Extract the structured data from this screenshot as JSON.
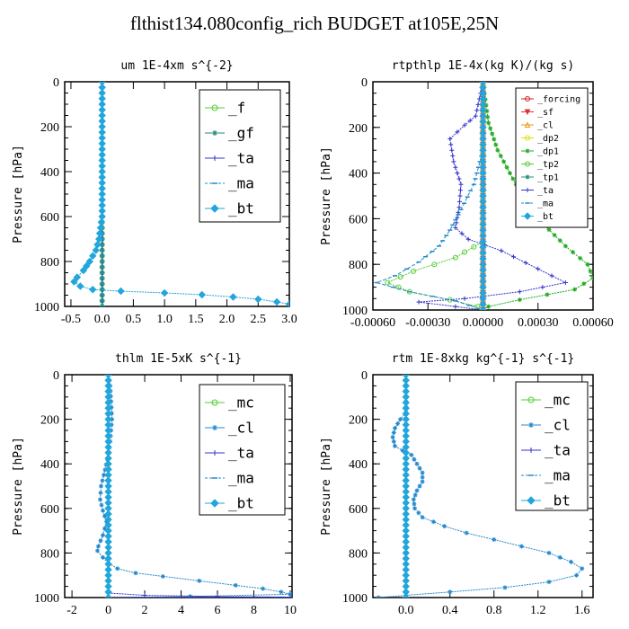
{
  "title": "flthist134.080config_rich  BUDGET at105E,25N",
  "chart_data": [
    {
      "type": "line",
      "title": "um  1E-4xm s^{-2}",
      "ylabel": "Pressure [hPa]",
      "xlim": [
        -0.6,
        3.0
      ],
      "ylim": [
        0,
        1000
      ],
      "x_ticks": [
        -0.5,
        0.0,
        0.5,
        1.0,
        1.5,
        2.0,
        2.5,
        3.0
      ],
      "x_tick_labels": [
        "-0.5",
        "0.0",
        "0.5",
        "1.0",
        "1.5",
        "2.0",
        "2.5",
        "3.0"
      ],
      "y_ticks": [
        0,
        200,
        400,
        600,
        800,
        1000
      ],
      "y_tick_labels": [
        "0",
        "200",
        "400",
        "600",
        "800",
        "1000"
      ],
      "legend_position": "top-right",
      "legend_font": 16,
      "series": [
        {
          "name": "_f",
          "color": "#55cc33",
          "marker": "o",
          "pairs": [
            [
              0,
              0
            ],
            [
              0,
              200
            ],
            [
              0,
              400
            ],
            [
              0,
              600
            ],
            [
              0,
              800
            ],
            [
              0,
              1000
            ]
          ]
        },
        {
          "name": "_gf",
          "color": "#228b77",
          "marker": "*",
          "pairs": [
            [
              0,
              0
            ],
            [
              0,
              200
            ],
            [
              0,
              400
            ],
            [
              0,
              600
            ],
            [
              0,
              800
            ],
            [
              0,
              1000
            ]
          ]
        },
        {
          "name": "_ta",
          "color": "#3333cc",
          "marker": "+",
          "pairs": [
            [
              0,
              0
            ],
            [
              0,
              1000
            ]
          ]
        },
        {
          "name": "_ma",
          "color": "#2288cc",
          "marker": "-",
          "pairs": [
            [
              0,
              0
            ],
            [
              0,
              1000
            ]
          ]
        },
        {
          "name": "_bt",
          "color": "#22a6dd",
          "marker": "d",
          "pairs": [
            [
              0,
              0
            ],
            [
              0,
              600
            ],
            [
              -0.05,
              700
            ],
            [
              -0.1,
              750
            ],
            [
              -0.2,
              800
            ],
            [
              -0.3,
              840
            ],
            [
              -0.4,
              870
            ],
            [
              -0.45,
              890
            ],
            [
              -0.35,
              910
            ],
            [
              -0.15,
              925
            ],
            [
              0.3,
              932
            ],
            [
              1.0,
              940
            ],
            [
              1.6,
              948
            ],
            [
              2.1,
              958
            ],
            [
              2.5,
              968
            ],
            [
              2.8,
              980
            ],
            [
              3.0,
              990
            ]
          ]
        }
      ]
    },
    {
      "type": "line",
      "title": "rtpthlp  1E-4x(kg K)/(kg s)",
      "ylabel": "Pressure [hPa]",
      "xlim": [
        -0.0006,
        0.0006
      ],
      "ylim": [
        0,
        1000
      ],
      "x_ticks": [
        -0.0006,
        -0.0003,
        0.0,
        0.0003,
        0.0006
      ],
      "x_tick_labels": [
        "-0.00060",
        "-0.00030",
        "0.00000",
        "0.00030",
        "0.00060"
      ],
      "y_ticks": [
        0,
        200,
        400,
        600,
        800,
        1000
      ],
      "y_tick_labels": [
        "0",
        "200",
        "400",
        "600",
        "800",
        "1000"
      ],
      "legend_position": "top-right",
      "legend_font": 10,
      "series": [
        {
          "name": "_forcing",
          "color": "#cc2222",
          "marker": "o",
          "pairs": [
            [
              0,
              0
            ],
            [
              0,
              1000
            ]
          ]
        },
        {
          "name": "_sf",
          "color": "#dd3333",
          "marker": "v",
          "pairs": [
            [
              0,
              0
            ],
            [
              0,
              1000
            ]
          ]
        },
        {
          "name": "_cl",
          "color": "#ee9911",
          "marker": "^",
          "pairs": [
            [
              0,
              0
            ],
            [
              0,
              1000
            ]
          ]
        },
        {
          "name": "_dp2",
          "color": "#dddd00",
          "marker": "o",
          "pairs": [
            [
              0,
              0
            ],
            [
              0,
              1000
            ]
          ]
        },
        {
          "name": "_dp1",
          "color": "#22aa22",
          "marker": "*",
          "pairs": [
            [
              0,
              0
            ],
            [
              3e-05,
              180
            ],
            [
              8e-05,
              300
            ],
            [
              0.00018,
              450
            ],
            [
              0.0003,
              600
            ],
            [
              0.00045,
              720
            ],
            [
              0.00057,
              800
            ],
            [
              0.0006,
              860
            ],
            [
              0.0005,
              910
            ],
            [
              0.0002,
              955
            ],
            [
              3e-05,
              985
            ],
            [
              0,
              1000
            ]
          ]
        },
        {
          "name": "_tp2",
          "color": "#55cc33",
          "marker": "o",
          "pairs": [
            [
              0,
              0
            ],
            [
              0,
              700
            ],
            [
              -0.00015,
              770
            ],
            [
              -0.00038,
              830
            ],
            [
              -0.00052,
              880
            ],
            [
              -0.0004,
              920
            ],
            [
              -0.00018,
              955
            ],
            [
              -3e-05,
              985
            ],
            [
              0,
              1000
            ]
          ]
        },
        {
          "name": "_tp1",
          "color": "#228b77",
          "marker": "*",
          "pairs": [
            [
              0,
              0
            ],
            [
              0,
              1000
            ]
          ]
        },
        {
          "name": "_ta",
          "color": "#3333cc",
          "marker": "+",
          "pairs": [
            [
              0,
              0
            ],
            [
              -4e-05,
              150
            ],
            [
              -0.0001,
              190
            ],
            [
              -0.00018,
              250
            ],
            [
              -0.00016,
              350
            ],
            [
              -0.00012,
              450
            ],
            [
              -0.00013,
              550
            ],
            [
              -0.00015,
              640
            ],
            [
              -8e-05,
              690
            ],
            [
              0.0001,
              740
            ],
            [
              0.0003,
              820
            ],
            [
              0.00045,
              880
            ],
            [
              0.0002,
              920
            ],
            [
              -0.0001,
              950
            ],
            [
              -0.00035,
              965
            ],
            [
              -0.00015,
              985
            ],
            [
              0,
              1000
            ]
          ]
        },
        {
          "name": "_ma",
          "color": "#2288cc",
          "marker": "-",
          "pairs": [
            [
              0,
              0
            ],
            [
              0,
              300
            ],
            [
              -5e-05,
              450
            ],
            [
              -0.00012,
              560
            ],
            [
              -0.00018,
              650
            ],
            [
              -0.00024,
              720
            ],
            [
              -0.00035,
              790
            ],
            [
              -0.00048,
              850
            ],
            [
              -0.00058,
              880
            ],
            [
              -0.0004,
              920
            ],
            [
              -0.00015,
              960
            ],
            [
              0,
              1000
            ]
          ]
        },
        {
          "name": "_bt",
          "color": "#22a6dd",
          "marker": "d",
          "pairs": [
            [
              0,
              0
            ],
            [
              0,
              1000
            ]
          ]
        }
      ]
    },
    {
      "type": "line",
      "title": "thlm  1E-5xK s^{-1}",
      "ylabel": "Pressure [hPa]",
      "xlim": [
        -2.4,
        10.1
      ],
      "ylim": [
        0,
        1000
      ],
      "x_ticks": [
        -2,
        0,
        2,
        4,
        6,
        8,
        10
      ],
      "x_tick_labels": [
        "-2",
        "0",
        "2",
        "4",
        "6",
        "8",
        "10"
      ],
      "y_ticks": [
        0,
        200,
        400,
        600,
        800,
        1000
      ],
      "y_tick_labels": [
        "0",
        "200",
        "400",
        "600",
        "800",
        "1000"
      ],
      "legend_position": "top-right",
      "legend_font": 16,
      "series": [
        {
          "name": "_mc",
          "color": "#55cc33",
          "marker": "o",
          "pairs": [
            [
              0,
              0
            ],
            [
              0,
              200
            ],
            [
              0,
              400
            ],
            [
              0,
              600
            ],
            [
              0,
              800
            ],
            [
              0,
              1000
            ]
          ]
        },
        {
          "name": "_cl",
          "color": "#2288cc",
          "marker": "*",
          "pairs": [
            [
              0,
              0
            ],
            [
              0.1,
              50
            ],
            [
              0.15,
              120
            ],
            [
              0.2,
              200
            ],
            [
              0.1,
              300
            ],
            [
              -0.05,
              380
            ],
            [
              -0.25,
              450
            ],
            [
              -0.4,
              500
            ],
            [
              -0.45,
              560
            ],
            [
              -0.3,
              610
            ],
            [
              -0.1,
              660
            ],
            [
              -0.3,
              720
            ],
            [
              -0.55,
              770
            ],
            [
              -0.6,
              790
            ],
            [
              -0.3,
              820
            ],
            [
              0,
              845
            ],
            [
              0.5,
              870
            ],
            [
              1.5,
              890
            ],
            [
              3.0,
              905
            ],
            [
              5.0,
              925
            ],
            [
              7.0,
              945
            ],
            [
              8.5,
              960
            ],
            [
              9.5,
              975
            ],
            [
              10,
              985
            ],
            [
              4.5,
              995
            ],
            [
              0,
              1000
            ]
          ]
        },
        {
          "name": "_ta",
          "color": "#3333cc",
          "marker": "+",
          "pairs": [
            [
              0,
              0
            ],
            [
              0,
              980
            ],
            [
              2,
              990
            ],
            [
              6,
              995
            ],
            [
              10,
              998
            ],
            [
              0,
              1000
            ]
          ]
        },
        {
          "name": "_ma",
          "color": "#2288cc",
          "marker": "-",
          "pairs": [
            [
              0,
              0
            ],
            [
              0,
              1000
            ]
          ]
        },
        {
          "name": "_bt",
          "color": "#22a6dd",
          "marker": "d",
          "pairs": [
            [
              0,
              0
            ],
            [
              0,
              1000
            ]
          ]
        }
      ]
    },
    {
      "type": "line",
      "title": "rtm  1E-8xkg kg^{-1} s^{-1}",
      "ylabel": "Pressure [hPa]",
      "xlim": [
        -0.3,
        1.7
      ],
      "ylim": [
        0,
        1000
      ],
      "x_ticks": [
        0.0,
        0.4,
        0.8,
        1.2,
        1.6
      ],
      "x_tick_labels": [
        "0.0",
        "0.4",
        "0.8",
        "1.2",
        "1.6"
      ],
      "y_ticks": [
        0,
        200,
        400,
        600,
        800,
        1000
      ],
      "y_tick_labels": [
        "0",
        "200",
        "400",
        "600",
        "800",
        "1000"
      ],
      "legend_position": "top-right",
      "legend_font": 16,
      "series": [
        {
          "name": "_mc",
          "color": "#55cc33",
          "marker": "o",
          "pairs": [
            [
              0,
              0
            ],
            [
              0,
              200
            ],
            [
              0,
              400
            ],
            [
              0,
              600
            ],
            [
              0,
              800
            ],
            [
              0,
              1000
            ]
          ]
        },
        {
          "name": "_cl",
          "color": "#2288cc",
          "marker": "*",
          "pairs": [
            [
              0,
              0
            ],
            [
              0,
              170
            ],
            [
              -0.05,
              200
            ],
            [
              -0.1,
              240
            ],
            [
              -0.12,
              280
            ],
            [
              -0.1,
              320
            ],
            [
              -0.03,
              340
            ],
            [
              0.05,
              360
            ],
            [
              0.1,
              400
            ],
            [
              0.15,
              440
            ],
            [
              0.15,
              480
            ],
            [
              0.1,
              520
            ],
            [
              0.07,
              560
            ],
            [
              0.08,
              600
            ],
            [
              0.15,
              640
            ],
            [
              0.35,
              680
            ],
            [
              0.55,
              710
            ],
            [
              0.8,
              740
            ],
            [
              1.05,
              770
            ],
            [
              1.3,
              800
            ],
            [
              1.5,
              840
            ],
            [
              1.6,
              870
            ],
            [
              1.55,
              900
            ],
            [
              1.3,
              930
            ],
            [
              0.9,
              955
            ],
            [
              0.4,
              975
            ],
            [
              0,
              990
            ],
            [
              -0.25,
              1000
            ]
          ]
        },
        {
          "name": "_ta",
          "color": "#3333cc",
          "marker": "+",
          "pairs": [
            [
              0,
              0
            ],
            [
              0,
              1000
            ]
          ]
        },
        {
          "name": "_ma",
          "color": "#2288cc",
          "marker": "-",
          "pairs": [
            [
              0,
              0
            ],
            [
              0,
              1000
            ]
          ]
        },
        {
          "name": "_bt",
          "color": "#22a6dd",
          "marker": "d",
          "pairs": [
            [
              0,
              0
            ],
            [
              0,
              1000
            ]
          ]
        }
      ]
    }
  ]
}
